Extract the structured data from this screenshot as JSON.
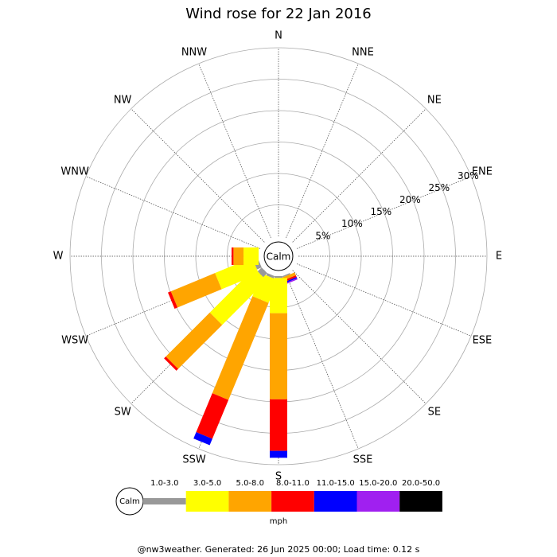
{
  "chart_data": {
    "type": "windrose",
    "title": "Wind rose for 22 Jan 2016",
    "calm_label": "Calm",
    "categories": [
      "N",
      "NNE",
      "NE",
      "ENE",
      "E",
      "ESE",
      "SE",
      "SSE",
      "S",
      "SSW",
      "SW",
      "WSW",
      "W",
      "WNW",
      "NW",
      "NNW"
    ],
    "series": [
      {
        "name": "1.0-3.0",
        "color": "#999999",
        "values": [
          0,
          0,
          0,
          0,
          0,
          0,
          0,
          0.2,
          0.3,
          0.4,
          0.9,
          0.8,
          0,
          0,
          0,
          0
        ]
      },
      {
        "name": "3.0-5.0",
        "color": "#ffff00",
        "values": [
          0,
          0,
          0,
          0,
          0,
          0,
          0,
          0,
          5.6,
          3.9,
          10.0,
          6.4,
          2.4,
          0,
          0,
          0
        ]
      },
      {
        "name": "5.0-8.0",
        "color": "#ffa500",
        "values": [
          0,
          0,
          0,
          0,
          0,
          0,
          0,
          0.5,
          13.7,
          16.7,
          9.9,
          7.6,
          1.6,
          0,
          0,
          0
        ]
      },
      {
        "name": "8.0-11.0",
        "color": "#ff0000",
        "values": [
          0,
          0,
          0,
          0,
          0,
          0,
          0,
          0.3,
          8.2,
          6.7,
          0.4,
          0.5,
          0.3,
          0,
          0,
          0
        ]
      },
      {
        "name": "11.0-15.0",
        "color": "#0000ff",
        "values": [
          0,
          0,
          0,
          0,
          0,
          0,
          0,
          0.2,
          1.1,
          1.1,
          0,
          0,
          0,
          0,
          0,
          0
        ]
      },
      {
        "name": "15.0-20.0",
        "color": "#a020f0",
        "values": [
          0,
          0,
          0,
          0,
          0,
          0,
          0,
          0.2,
          0,
          0,
          0,
          0,
          0,
          0,
          0,
          0
        ]
      },
      {
        "name": "20.0-50.0",
        "color": "#000000",
        "values": [
          0,
          0,
          0,
          0,
          0,
          0,
          0,
          0,
          0,
          0,
          0,
          0,
          0,
          0,
          0,
          0
        ]
      }
    ],
    "rlim": [
      0,
      30
    ],
    "rticks": [
      {
        "value": 5,
        "label": "5%"
      },
      {
        "value": 10,
        "label": "10%"
      },
      {
        "value": 15,
        "label": "15%"
      },
      {
        "value": 20,
        "label": "20%"
      },
      {
        "value": 25,
        "label": "25%"
      },
      {
        "value": 30,
        "label": "30%"
      }
    ],
    "legend_unit": "mph"
  },
  "footer": "@nw3weather. Generated: 26 Jun 2025 00:00; Load time: 0.12 s"
}
